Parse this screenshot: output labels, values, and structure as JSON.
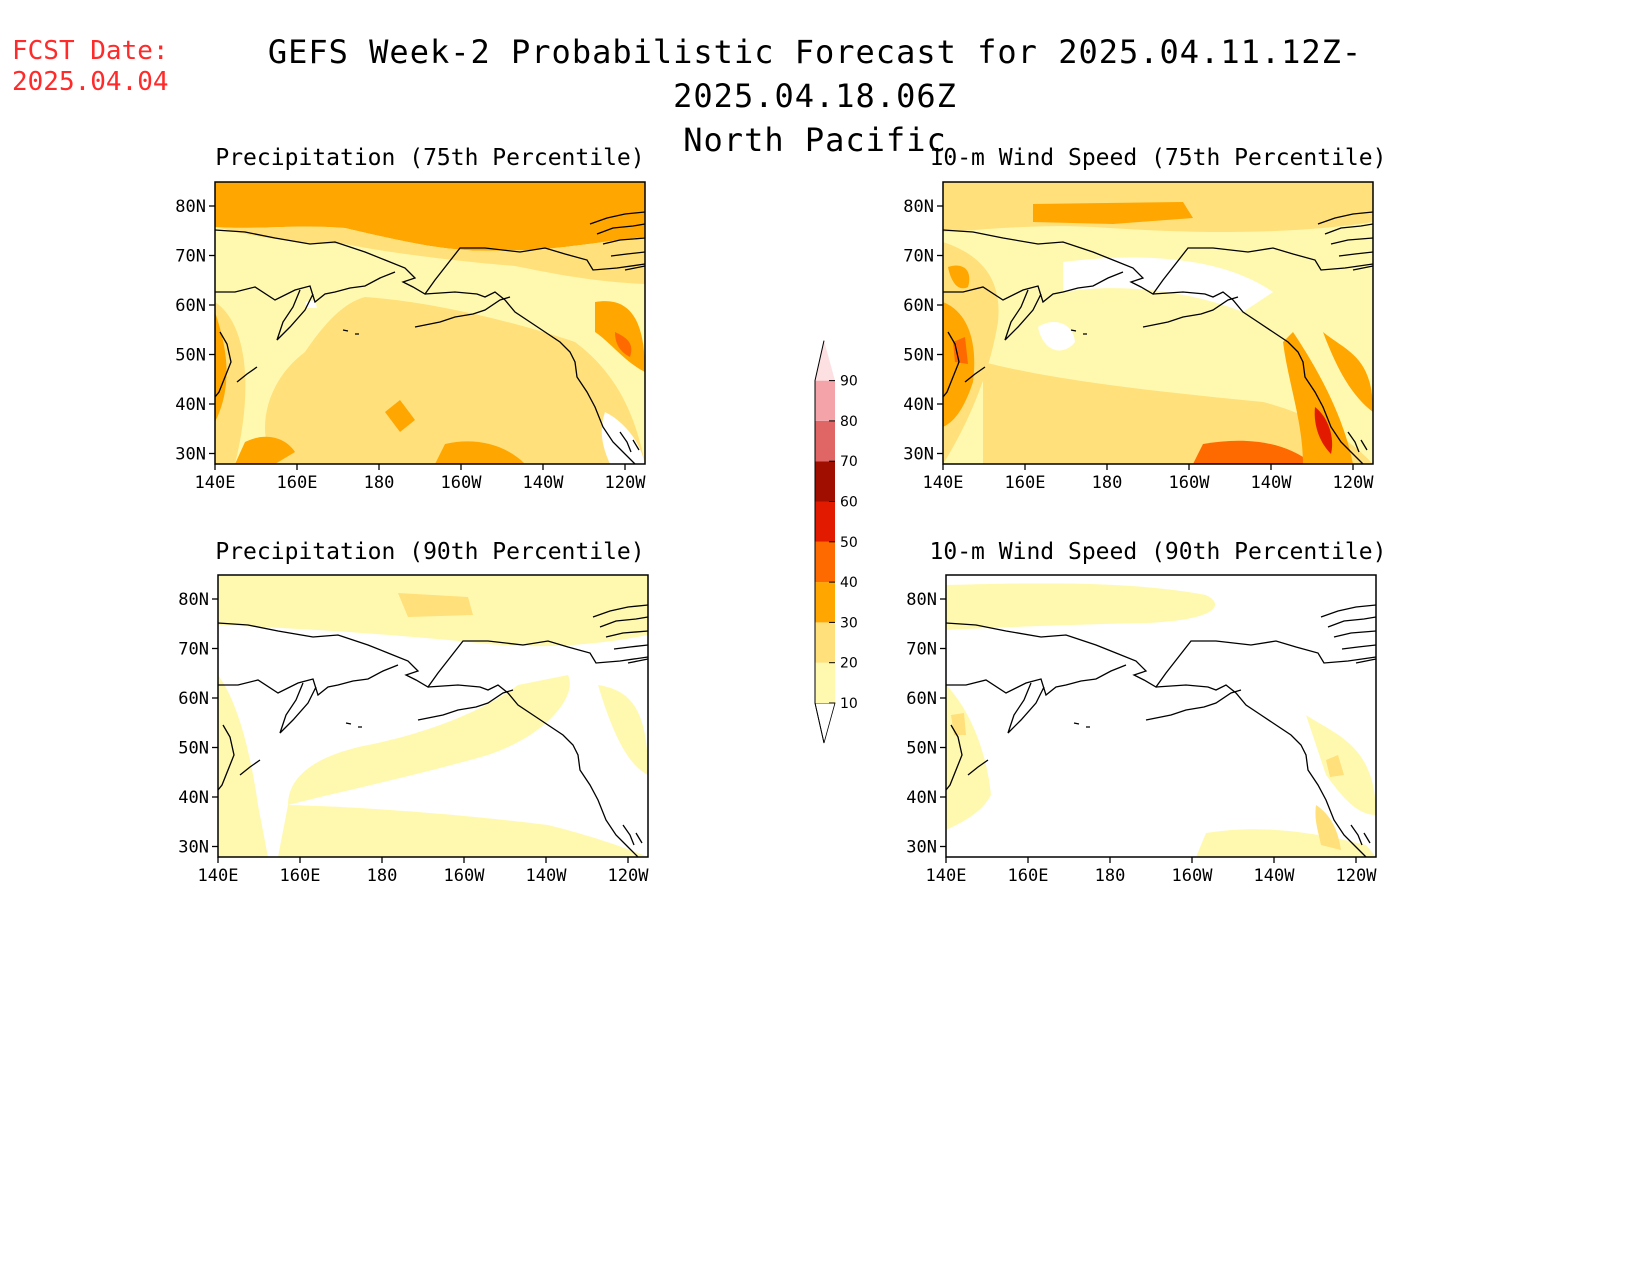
{
  "header": {
    "fcst_label": "FCST Date:",
    "fcst_date": "2025.04.04",
    "title_line1": "GEFS Week-2 Probabilistic Forecast for 2025.04.11.12Z-2025.04.18.06Z",
    "title_line2": "North Pacific"
  },
  "panels": [
    {
      "title": "Precipitation (75th Percentile)"
    },
    {
      "title": "10-m Wind Speed (75th Percentile)"
    },
    {
      "title": "Precipitation (90th Percentile)"
    },
    {
      "title": "10-m Wind Speed (90th Percentile)"
    }
  ],
  "axes": {
    "lat_labels": [
      "80N",
      "70N",
      "60N",
      "50N",
      "40N",
      "30N"
    ],
    "lon_labels": [
      "140E",
      "160E",
      "180",
      "160W",
      "140W",
      "120W"
    ]
  },
  "colorbar": {
    "levels": [
      "10",
      "20",
      "30",
      "40",
      "50",
      "60",
      "70",
      "80",
      "90"
    ],
    "colors": {
      "10": "#fff9b0",
      "20": "#ffe07a",
      "30": "#ffa600",
      "40": "#ff6a00",
      "50": "#e21a00",
      "60": "#a00e00",
      "70": "#e06666",
      "80": "#f4a3a8",
      "90": "#fde0e2"
    }
  }
}
